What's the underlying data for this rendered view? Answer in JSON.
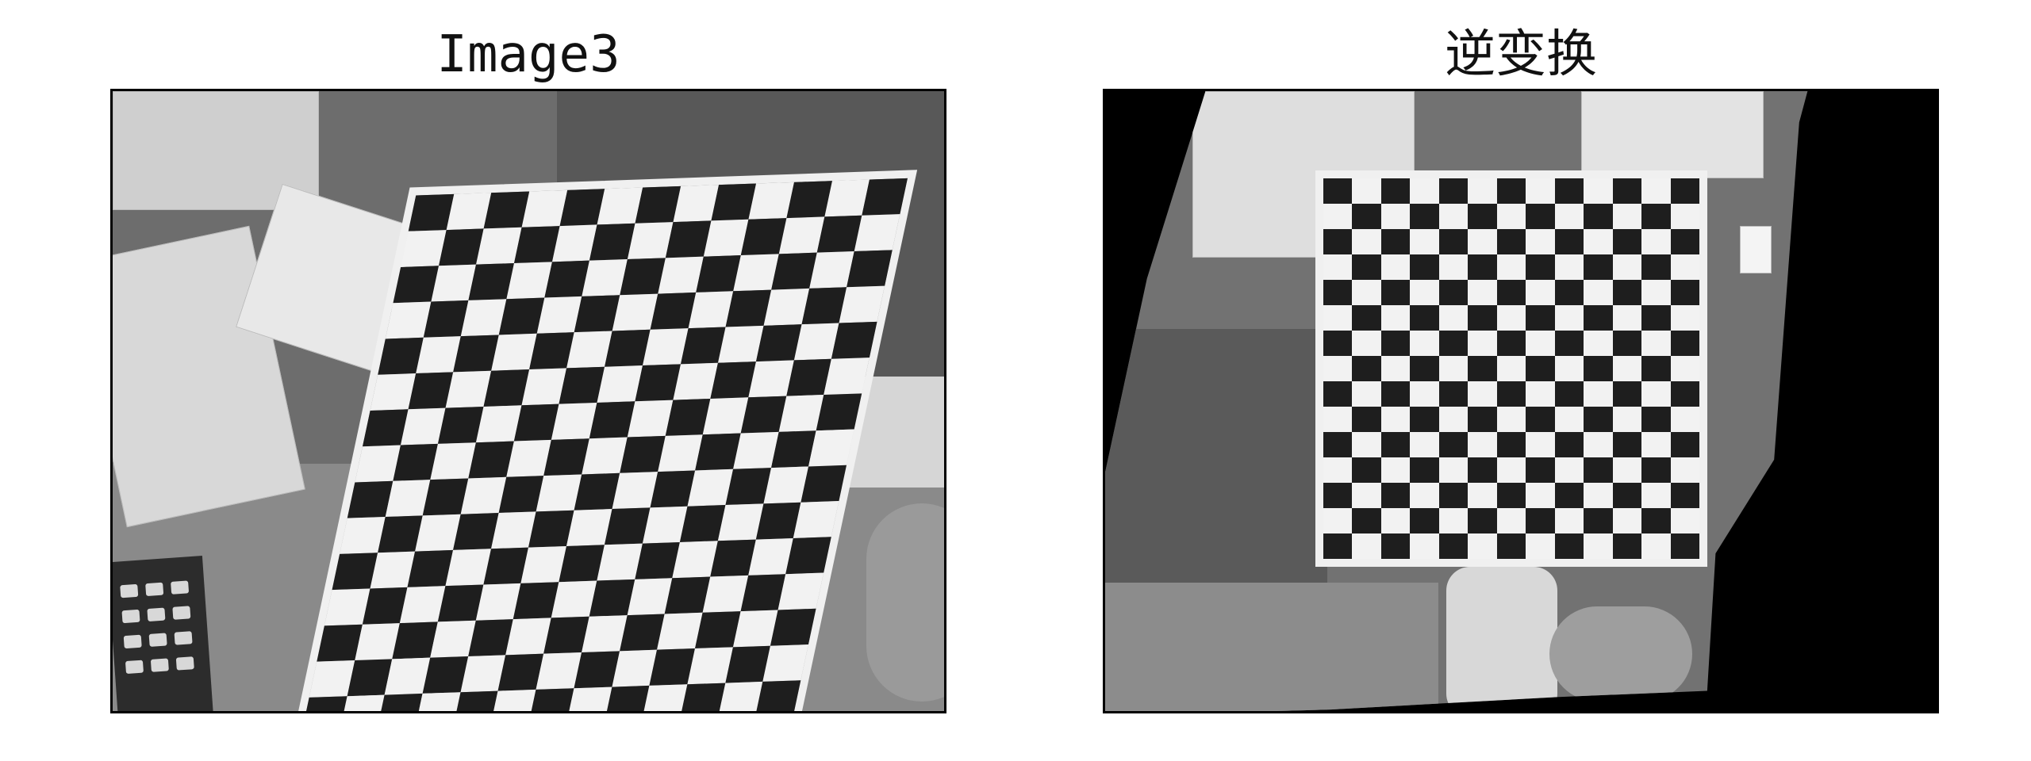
{
  "figure": {
    "left_title": "Image3",
    "right_title": "逆变换"
  },
  "checkerboard": {
    "rows": 15,
    "cols": 13,
    "dark": "#1e1e1e",
    "light": "#f2f2f2"
  },
  "colors": {
    "background": "#ffffff",
    "border": "#000000",
    "right_fill": "#000000"
  }
}
